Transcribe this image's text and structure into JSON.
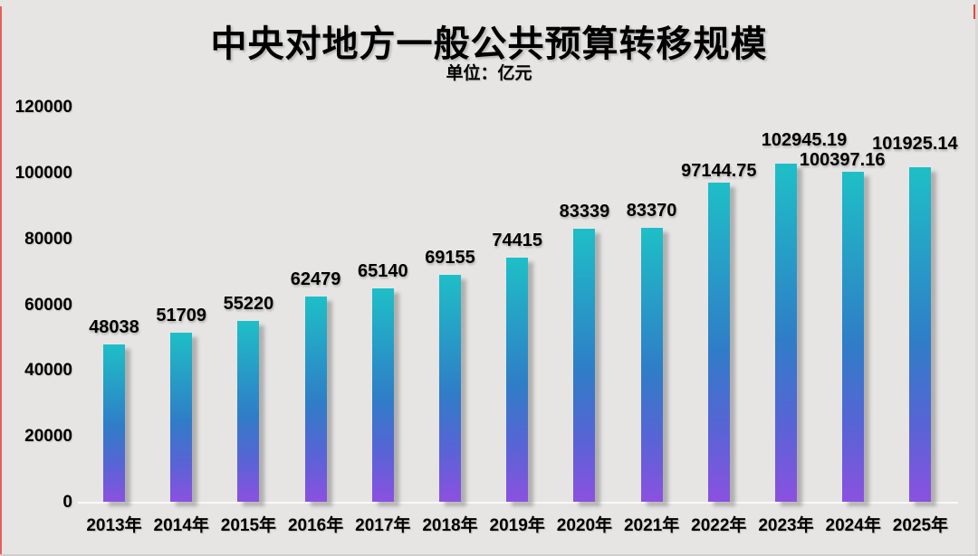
{
  "page": {
    "title": "中央对地方一般公共预算转移规模",
    "subtitle": "单位：亿元"
  },
  "chart_data": {
    "type": "bar",
    "title": "中央对地方一般公共预算转移规模",
    "subtitle_unit": "单位：亿元",
    "categories": [
      "2013年",
      "2014年",
      "2015年",
      "2016年",
      "2017年",
      "2018年",
      "2019年",
      "2020年",
      "2021年",
      "2022年",
      "2023年",
      "2024年",
      "2025年"
    ],
    "values": [
      48038,
      51709,
      55220,
      62479,
      65140,
      69155,
      74415,
      83339,
      83370,
      97144.75,
      102945.19,
      100397.16,
      101925.14
    ],
    "value_labels": [
      "48038",
      "51709",
      "55220",
      "62479",
      "65140",
      "69155",
      "74415",
      "83339",
      "83370",
      "97144.75",
      "102945.19",
      "100397.16",
      "101925.14"
    ],
    "xlabel": "",
    "ylabel": "",
    "y_ticks": [
      0,
      20000,
      40000,
      60000,
      80000,
      100000,
      120000
    ],
    "ylim": [
      0,
      120000
    ],
    "grid": false,
    "legend": "none",
    "colors": {
      "bar_gradient_top": "#1ebfc7",
      "bar_gradient_middle": "#2f7dc7",
      "bar_gradient_bottom": "#8b51e0",
      "background": "#e6e5e4",
      "text": "#000000",
      "axis_line": "#f2f1f0",
      "edge_artifact_red": "#e8322e"
    }
  }
}
